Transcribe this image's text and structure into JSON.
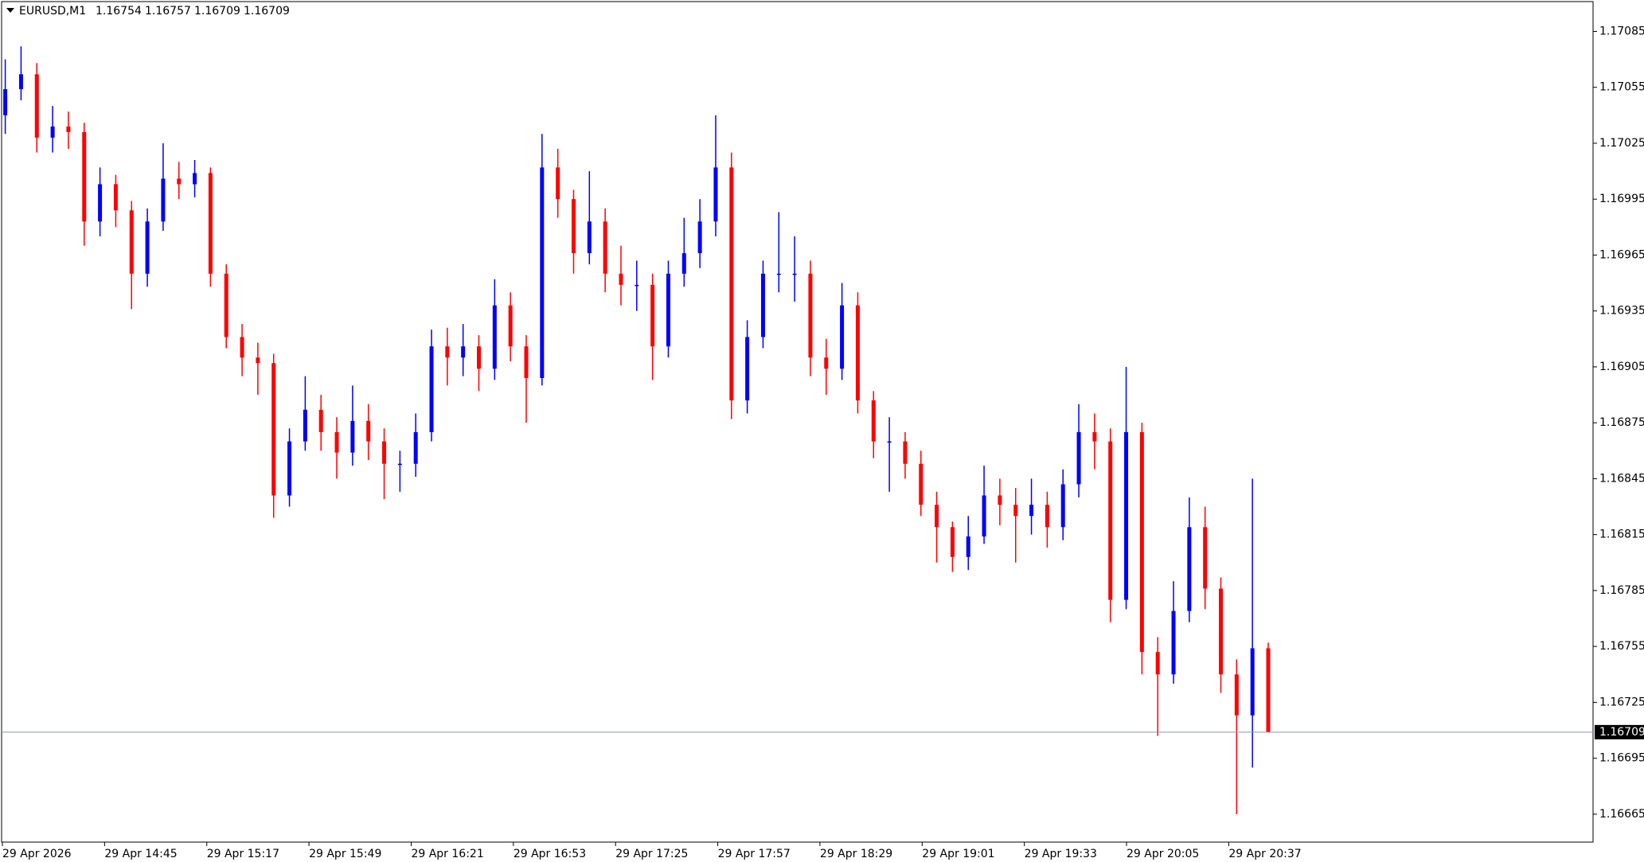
{
  "chart_data": {
    "type": "candlestick",
    "symbol": "EURUSD,M1",
    "header_ohlc": [
      1.16754,
      1.16757,
      1.16709,
      1.16709
    ],
    "up_color": "#0000ff",
    "down_color": "#ff0000",
    "current_price": 1.16709,
    "ylim": [
      1.1665,
      1.17101
    ],
    "yticks": [
      1.17085,
      1.17055,
      1.17025,
      1.16995,
      1.16965,
      1.16935,
      1.16905,
      1.16875,
      1.16845,
      1.16815,
      1.16785,
      1.16755,
      1.16725,
      1.16695,
      1.16665
    ],
    "time_labels": [
      "29 Apr 2026",
      "29 Apr 14:45",
      "29 Apr 15:17",
      "29 Apr 15:49",
      "29 Apr 16:21",
      "29 Apr 16:53",
      "29 Apr 17:25",
      "29 Apr 17:57",
      "29 Apr 18:29",
      "29 Apr 19:01",
      "29 Apr 19:33",
      "29 Apr 20:05",
      "29 Apr 20:37"
    ],
    "open": [
      1.1704,
      1.17054,
      1.17062,
      1.17028,
      1.17034,
      1.17031,
      1.16983,
      1.17003,
      1.16989,
      1.16955,
      1.16983,
      1.17006,
      1.17003,
      1.17009,
      1.16955,
      1.16921,
      1.1691,
      1.16907,
      1.16836,
      1.16865,
      1.16882,
      1.1687,
      1.16859,
      1.16876,
      1.16865,
      1.16853,
      1.16853,
      1.1687,
      1.16916,
      1.1691,
      1.16916,
      1.16904,
      1.16938,
      1.16916,
      1.16899,
      1.17012,
      1.16995,
      1.16966,
      1.16983,
      1.16955,
      1.16949,
      1.16949,
      1.16916,
      1.16955,
      1.16966,
      1.16983,
      1.17012,
      1.16887,
      1.16921,
      1.16955,
      1.16955,
      1.16955,
      1.1691,
      1.16904,
      1.16938,
      1.16887,
      1.16865,
      1.16865,
      1.16853,
      1.16831,
      1.16819,
      1.16803,
      1.16814,
      1.16836,
      1.16831,
      1.16825,
      1.16831,
      1.16819,
      1.16842,
      1.1687,
      1.16865,
      1.1678,
      1.1687,
      1.16752,
      1.1674,
      1.16774,
      1.16819,
      1.16786,
      1.1674,
      1.16718,
      1.16754
    ],
    "high": [
      1.1707,
      1.17077,
      1.17068,
      1.17045,
      1.17042,
      1.17036,
      1.17012,
      1.17008,
      1.16994,
      1.1699,
      1.17025,
      1.17015,
      1.17016,
      1.17012,
      1.1696,
      1.16928,
      1.16918,
      1.16912,
      1.16872,
      1.169,
      1.1689,
      1.16878,
      1.16895,
      1.16885,
      1.16872,
      1.1686,
      1.1688,
      1.16925,
      1.16926,
      1.16928,
      1.16922,
      1.16952,
      1.16945,
      1.16922,
      1.1703,
      1.17022,
      1.17,
      1.1701,
      1.1699,
      1.1697,
      1.16962,
      1.16955,
      1.16962,
      1.16985,
      1.16995,
      1.1704,
      1.1702,
      1.1693,
      1.16962,
      1.16988,
      1.16975,
      1.16962,
      1.1692,
      1.1695,
      1.16945,
      1.16892,
      1.16878,
      1.1687,
      1.1686,
      1.16838,
      1.16822,
      1.16825,
      1.16852,
      1.16845,
      1.1684,
      1.16845,
      1.16838,
      1.1685,
      1.16885,
      1.1688,
      1.16872,
      1.16905,
      1.16875,
      1.1676,
      1.1679,
      1.16835,
      1.1683,
      1.16792,
      1.16748,
      1.16845,
      1.16757
    ],
    "low": [
      1.1703,
      1.17048,
      1.1702,
      1.1702,
      1.17022,
      1.1697,
      1.16975,
      1.1698,
      1.16936,
      1.16948,
      1.16978,
      1.16995,
      1.16996,
      1.16948,
      1.16915,
      1.169,
      1.1689,
      1.16824,
      1.1683,
      1.1686,
      1.1686,
      1.16845,
      1.16852,
      1.16855,
      1.16834,
      1.16838,
      1.16846,
      1.16865,
      1.16895,
      1.169,
      1.16892,
      1.16898,
      1.16908,
      1.16875,
      1.16895,
      1.16985,
      1.16955,
      1.1696,
      1.16945,
      1.16938,
      1.16935,
      1.16898,
      1.1691,
      1.16948,
      1.16958,
      1.16975,
      1.16877,
      1.1688,
      1.16915,
      1.16945,
      1.1694,
      1.169,
      1.1689,
      1.16898,
      1.1688,
      1.16856,
      1.16838,
      1.16845,
      1.16825,
      1.168,
      1.16795,
      1.16796,
      1.1681,
      1.1682,
      1.168,
      1.16815,
      1.16808,
      1.16812,
      1.16835,
      1.1685,
      1.16768,
      1.16775,
      1.1674,
      1.16707,
      1.16735,
      1.16768,
      1.16775,
      1.1673,
      1.16665,
      1.1669,
      1.16709
    ],
    "close": [
      1.17054,
      1.17062,
      1.17028,
      1.17034,
      1.17031,
      1.16983,
      1.17003,
      1.16989,
      1.16955,
      1.16983,
      1.17006,
      1.17003,
      1.17009,
      1.16955,
      1.16921,
      1.1691,
      1.16907,
      1.16836,
      1.16865,
      1.16882,
      1.1687,
      1.16859,
      1.16876,
      1.16865,
      1.16853,
      1.16853,
      1.1687,
      1.16916,
      1.1691,
      1.16916,
      1.16904,
      1.16938,
      1.16916,
      1.16899,
      1.17012,
      1.16995,
      1.16966,
      1.16983,
      1.16955,
      1.16949,
      1.16949,
      1.16916,
      1.16955,
      1.16966,
      1.16983,
      1.17012,
      1.16887,
      1.16921,
      1.16955,
      1.16955,
      1.16955,
      1.1691,
      1.16904,
      1.16938,
      1.16887,
      1.16865,
      1.16865,
      1.16853,
      1.16831,
      1.16819,
      1.16803,
      1.16814,
      1.16836,
      1.16831,
      1.16825,
      1.16831,
      1.16819,
      1.16842,
      1.1687,
      1.16865,
      1.1678,
      1.1687,
      1.16752,
      1.1674,
      1.16774,
      1.16819,
      1.16786,
      1.1674,
      1.16718,
      1.16754,
      1.16709
    ]
  }
}
